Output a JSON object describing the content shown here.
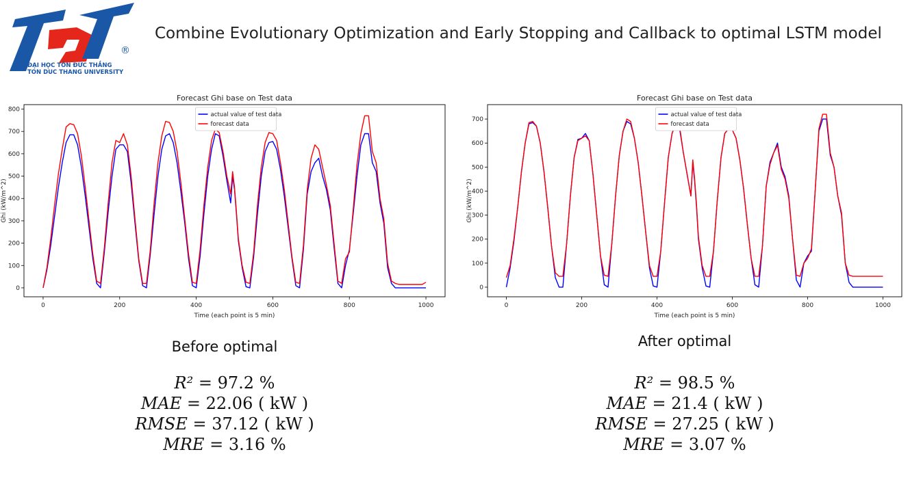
{
  "slide": {
    "title": "Combine Evolutionary Optimization and Early Stopping and Callback to optimal LSTM model"
  },
  "logo": {
    "mark": "TDT",
    "line1": "ĐẠI HỌC TÔN ĐỨC THẮNG",
    "line2": "TON DUC THANG UNIVERSITY",
    "registered": "®",
    "colors": {
      "blue": "#1a57a6",
      "red": "#e5271b"
    }
  },
  "chart_data": [
    {
      "type": "line",
      "title": "Forecast Ghi base on Test data",
      "xlabel": "Time (each point is 5 min)",
      "ylabel": "Ghi (kW/m^2)",
      "xlim": [
        -50,
        1050
      ],
      "ylim": [
        -40,
        820
      ],
      "xticks": [
        0,
        200,
        400,
        600,
        800,
        1000
      ],
      "yticks": [
        0,
        100,
        200,
        300,
        400,
        500,
        600,
        700,
        800
      ],
      "grid": false,
      "legend_position": "top-center",
      "series": [
        {
          "name": "actual value of test data",
          "color": "#0000ff",
          "x": [
            0,
            10,
            20,
            30,
            40,
            50,
            60,
            70,
            80,
            90,
            100,
            110,
            120,
            130,
            140,
            150,
            160,
            170,
            180,
            190,
            200,
            210,
            220,
            230,
            240,
            250,
            260,
            270,
            280,
            290,
            300,
            310,
            320,
            330,
            340,
            350,
            360,
            370,
            380,
            390,
            400,
            410,
            420,
            430,
            440,
            450,
            460,
            470,
            480,
            490,
            495,
            500,
            505,
            510,
            520,
            530,
            540,
            550,
            560,
            570,
            580,
            590,
            600,
            610,
            620,
            630,
            640,
            650,
            660,
            670,
            680,
            690,
            700,
            710,
            720,
            730,
            740,
            750,
            760,
            770,
            780,
            790,
            800,
            810,
            820,
            830,
            840,
            850,
            860,
            870,
            880,
            890,
            900,
            910,
            920,
            930,
            940,
            950,
            960,
            970,
            980,
            990,
            1000
          ],
          "values": [
            0,
            80,
            190,
            320,
            450,
            560,
            650,
            685,
            685,
            640,
            540,
            410,
            270,
            130,
            20,
            0,
            160,
            340,
            500,
            620,
            640,
            640,
            610,
            470,
            290,
            120,
            10,
            0,
            150,
            330,
            500,
            620,
            680,
            690,
            650,
            560,
            430,
            290,
            130,
            10,
            0,
            140,
            330,
            500,
            620,
            690,
            680,
            590,
            480,
            380,
            500,
            440,
            330,
            210,
            90,
            5,
            0,
            140,
            330,
            500,
            610,
            650,
            655,
            620,
            530,
            410,
            270,
            130,
            10,
            0,
            170,
            420,
            520,
            560,
            580,
            500,
            440,
            350,
            180,
            20,
            0,
            100,
            170,
            330,
            500,
            640,
            690,
            690,
            560,
            520,
            380,
            290,
            90,
            20,
            0,
            0,
            0,
            0,
            0,
            0,
            0,
            0,
            0
          ]
        },
        {
          "name": "forecast data",
          "color": "#ff0000",
          "x": [
            0,
            10,
            20,
            30,
            40,
            50,
            60,
            70,
            80,
            90,
            100,
            110,
            120,
            130,
            140,
            150,
            160,
            170,
            180,
            190,
            200,
            210,
            220,
            230,
            240,
            250,
            260,
            270,
            280,
            290,
            300,
            310,
            320,
            330,
            340,
            350,
            360,
            370,
            380,
            390,
            400,
            410,
            420,
            430,
            440,
            450,
            460,
            470,
            480,
            490,
            495,
            500,
            505,
            510,
            520,
            530,
            540,
            550,
            560,
            570,
            580,
            590,
            600,
            610,
            620,
            630,
            640,
            650,
            660,
            670,
            680,
            690,
            700,
            710,
            720,
            730,
            740,
            750,
            760,
            770,
            780,
            790,
            800,
            810,
            820,
            830,
            840,
            850,
            860,
            870,
            880,
            890,
            900,
            910,
            920,
            930,
            940,
            950,
            960,
            970,
            980,
            990,
            1000
          ],
          "values": [
            0,
            90,
            220,
            370,
            510,
            620,
            720,
            735,
            730,
            690,
            590,
            450,
            300,
            150,
            30,
            20,
            180,
            380,
            560,
            660,
            650,
            690,
            640,
            500,
            310,
            130,
            20,
            20,
            170,
            380,
            560,
            680,
            745,
            740,
            700,
            610,
            470,
            310,
            150,
            25,
            20,
            170,
            370,
            540,
            660,
            710,
            695,
            610,
            500,
            420,
            520,
            450,
            340,
            220,
            100,
            25,
            20,
            160,
            370,
            540,
            650,
            695,
            690,
            660,
            560,
            440,
            290,
            140,
            25,
            20,
            190,
            440,
            580,
            640,
            620,
            540,
            460,
            370,
            200,
            30,
            20,
            130,
            160,
            350,
            550,
            690,
            770,
            770,
            610,
            560,
            400,
            310,
            110,
            30,
            20,
            15,
            15,
            15,
            15,
            15,
            15,
            15,
            25
          ]
        }
      ]
    },
    {
      "type": "line",
      "title": "Forecast Ghi base on Test data",
      "xlabel": "Time (each point is 5 min)",
      "ylabel": "Ghi (kW/m^2)",
      "xlim": [
        -50,
        1050
      ],
      "ylim": [
        -40,
        760
      ],
      "xticks": [
        0,
        200,
        400,
        600,
        800,
        1000
      ],
      "yticks": [
        0,
        100,
        200,
        300,
        400,
        500,
        600,
        700
      ],
      "grid": false,
      "legend_position": "top-center",
      "series": [
        {
          "name": "actual value of test data",
          "color": "#0000ff",
          "x": [
            0,
            10,
            20,
            30,
            40,
            50,
            60,
            70,
            80,
            90,
            100,
            110,
            120,
            130,
            140,
            150,
            160,
            170,
            180,
            190,
            200,
            210,
            220,
            230,
            240,
            250,
            260,
            270,
            280,
            290,
            300,
            310,
            320,
            330,
            340,
            350,
            360,
            370,
            380,
            390,
            400,
            410,
            420,
            430,
            440,
            450,
            460,
            470,
            480,
            490,
            495,
            500,
            505,
            510,
            520,
            530,
            540,
            550,
            560,
            570,
            580,
            590,
            600,
            610,
            620,
            630,
            640,
            650,
            660,
            670,
            680,
            690,
            700,
            710,
            720,
            730,
            740,
            750,
            760,
            770,
            780,
            790,
            800,
            810,
            820,
            830,
            840,
            850,
            860,
            870,
            880,
            890,
            900,
            910,
            920,
            930,
            940,
            950,
            960,
            970,
            980,
            990,
            1000
          ],
          "values": [
            0,
            80,
            190,
            330,
            480,
            600,
            680,
            685,
            670,
            600,
            480,
            330,
            170,
            40,
            0,
            0,
            180,
            380,
            540,
            615,
            620,
            640,
            610,
            470,
            300,
            130,
            10,
            0,
            180,
            380,
            550,
            650,
            690,
            680,
            620,
            520,
            380,
            230,
            80,
            5,
            0,
            150,
            350,
            540,
            640,
            680,
            660,
            560,
            470,
            380,
            520,
            440,
            330,
            200,
            80,
            5,
            0,
            150,
            360,
            540,
            640,
            660,
            655,
            620,
            530,
            410,
            260,
            120,
            10,
            0,
            170,
            420,
            520,
            560,
            600,
            500,
            460,
            380,
            200,
            30,
            0,
            100,
            130,
            150,
            400,
            650,
            700,
            700,
            550,
            500,
            380,
            300,
            100,
            20,
            0,
            0,
            0,
            0,
            0,
            0,
            0,
            0,
            0
          ]
        },
        {
          "name": "forecast data",
          "color": "#ff0000",
          "x": [
            0,
            10,
            20,
            30,
            40,
            50,
            60,
            70,
            80,
            90,
            100,
            110,
            120,
            130,
            140,
            150,
            160,
            170,
            180,
            190,
            200,
            210,
            220,
            230,
            240,
            250,
            260,
            270,
            280,
            290,
            300,
            310,
            320,
            330,
            340,
            350,
            360,
            370,
            380,
            390,
            400,
            410,
            420,
            430,
            440,
            450,
            460,
            470,
            480,
            490,
            495,
            500,
            505,
            510,
            520,
            530,
            540,
            550,
            560,
            570,
            580,
            590,
            600,
            610,
            620,
            630,
            640,
            650,
            660,
            670,
            680,
            690,
            700,
            710,
            720,
            730,
            740,
            750,
            760,
            770,
            780,
            790,
            800,
            810,
            820,
            830,
            840,
            850,
            860,
            870,
            880,
            890,
            900,
            910,
            920,
            930,
            940,
            950,
            960,
            970,
            980,
            990,
            1000
          ],
          "values": [
            40,
            90,
            200,
            330,
            480,
            600,
            685,
            690,
            670,
            600,
            480,
            330,
            170,
            60,
            45,
            45,
            180,
            380,
            540,
            610,
            620,
            630,
            610,
            470,
            300,
            130,
            50,
            45,
            180,
            380,
            550,
            650,
            700,
            690,
            620,
            520,
            380,
            230,
            90,
            45,
            45,
            150,
            350,
            540,
            640,
            690,
            670,
            560,
            470,
            380,
            530,
            450,
            340,
            210,
            90,
            45,
            45,
            150,
            360,
            540,
            640,
            660,
            655,
            620,
            530,
            410,
            260,
            120,
            45,
            45,
            170,
            420,
            510,
            560,
            590,
            490,
            450,
            370,
            200,
            50,
            45,
            100,
            120,
            160,
            400,
            660,
            720,
            720,
            560,
            500,
            380,
            310,
            100,
            50,
            45,
            45,
            45,
            45,
            45,
            45,
            45,
            45,
            45
          ]
        }
      ]
    }
  ],
  "panels": [
    {
      "caption": "Before optimal",
      "r2": "= 97.2 %",
      "mae": "= 22.06 ( kW )",
      "rmse": "= 37.12 ( kW )",
      "mre": "= 3.16 %"
    },
    {
      "caption": "After optimal",
      "r2": "= 98.5 %",
      "mae": "= 21.4 ( kW )",
      "rmse": "= 27.25 ( kW )",
      "mre": "= 3.07 %"
    }
  ],
  "metric_symbols": {
    "r2": "R²",
    "mae": "MAE",
    "rmse": "RMSE",
    "mre": "MRE"
  }
}
